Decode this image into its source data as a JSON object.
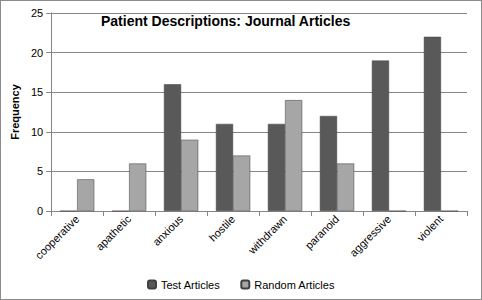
{
  "chart_data": {
    "type": "bar",
    "title": "Patient Descriptions: Journal Articles",
    "y_label": "Frequency",
    "categories": [
      "cooperative",
      "apathetic",
      "anxious",
      "hostile",
      "withdrawn",
      "paranoid",
      "aggressive",
      "violent"
    ],
    "series": [
      {
        "name": "Test Articles",
        "color": "#595959",
        "values": [
          0,
          0,
          16,
          11,
          11,
          12,
          19,
          22
        ]
      },
      {
        "name": "Random Articles",
        "color": "#a6a6a6",
        "values": [
          4,
          6,
          9,
          7,
          14,
          6,
          0,
          0
        ]
      }
    ],
    "ylim": [
      0,
      25
    ],
    "yticks": [
      0,
      5,
      10,
      15,
      20,
      25
    ],
    "grid": true,
    "legend": "bottom"
  }
}
